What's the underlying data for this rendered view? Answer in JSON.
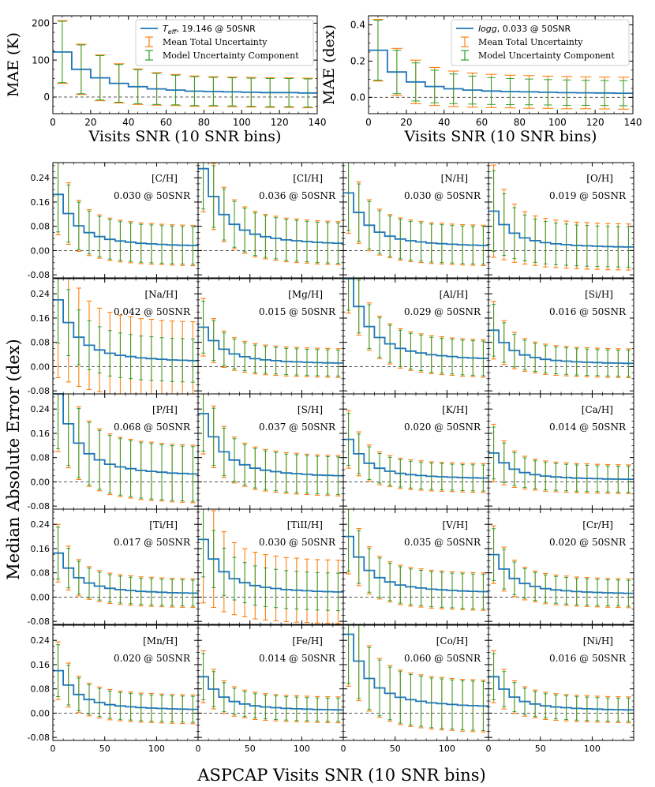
{
  "figure": {
    "shared_ylabel": "Median Absolute Error (dex)",
    "shared_xlabel": "ASPCAP Visits SNR (10 SNR bins)"
  },
  "legend_labels": {
    "total": "Mean Total Uncertainty",
    "model": "Model Uncertainty Component"
  },
  "colors": {
    "line": "#1f77b4",
    "total": "#ff7f0e",
    "model": "#2ca02c",
    "zero": "#444444"
  },
  "chart_data": [
    {
      "id": "teff",
      "type": "line",
      "title": "",
      "xlabel": "Visits SNR (10 SNR bins)",
      "ylabel": "MAE (K)",
      "xlim": [
        0,
        140
      ],
      "ylim": [
        -45,
        220
      ],
      "xticks": [
        0,
        20,
        40,
        60,
        80,
        100,
        120,
        140
      ],
      "yticks": [
        0,
        100,
        200
      ],
      "legend_param": "T",
      "legend_param_sub": "eff",
      "legend_rest": ", 19.146 @ 50SNR",
      "x": [
        0,
        10,
        20,
        30,
        40,
        50,
        60,
        70,
        80,
        90,
        100,
        110,
        120,
        130
      ],
      "bin_width": 10,
      "values": [
        122,
        75,
        52,
        37,
        28,
        22,
        19,
        16,
        15,
        14,
        13,
        12,
        12,
        11
      ],
      "total_err": [
        85,
        68,
        62,
        53,
        48,
        44,
        42,
        41,
        40,
        40,
        40,
        40,
        40,
        40
      ],
      "model_err": [
        83,
        66,
        60,
        51,
        46,
        42,
        40,
        39,
        38,
        38,
        38,
        38,
        38,
        38
      ]
    },
    {
      "id": "logg",
      "type": "line",
      "title": "",
      "xlabel": "Visits SNR (10 SNR bins)",
      "ylabel": "MAE (dex)",
      "xlim": [
        0,
        140
      ],
      "ylim": [
        -0.09,
        0.45
      ],
      "xticks": [
        0,
        20,
        40,
        60,
        80,
        100,
        120,
        140
      ],
      "yticks": [
        0.0,
        0.2,
        0.4
      ],
      "legend_param": "logg",
      "legend_param_sub": "",
      "legend_rest": ", 0.033 @ 50SNR",
      "x": [
        0,
        10,
        20,
        30,
        40,
        50,
        60,
        70,
        80,
        90,
        100,
        110,
        120,
        130
      ],
      "bin_width": 10,
      "values": [
        0.26,
        0.14,
        0.085,
        0.06,
        0.047,
        0.04,
        0.035,
        0.032,
        0.03,
        0.028,
        0.026,
        0.025,
        0.024,
        0.023
      ],
      "total_err": [
        0.17,
        0.13,
        0.12,
        0.105,
        0.098,
        0.094,
        0.092,
        0.09,
        0.09,
        0.089,
        0.089,
        0.088,
        0.088,
        0.088
      ],
      "model_err": [
        0.165,
        0.12,
        0.105,
        0.09,
        0.082,
        0.077,
        0.074,
        0.072,
        0.071,
        0.07,
        0.07,
        0.069,
        0.069,
        0.069
      ]
    },
    {
      "id": "C_H",
      "type": "line",
      "label": "[C/H]",
      "mae_text": "0.030 @ 50SNR",
      "peak": 0.185,
      "tot": 0.07,
      "mod": 0.065
    },
    {
      "id": "CI_H",
      "type": "line",
      "label": "[CI/H]",
      "mae_text": "0.036 @ 50SNR",
      "peak": 0.27,
      "tot": 0.075,
      "mod": 0.07
    },
    {
      "id": "N_H",
      "type": "line",
      "label": "[N/H]",
      "mae_text": "0.030 @ 50SNR",
      "peak": 0.19,
      "tot": 0.07,
      "mod": 0.065
    },
    {
      "id": "O_H",
      "type": "line",
      "label": "[O/H]",
      "mae_text": "0.019 @ 50SNR",
      "peak": 0.13,
      "tot": 0.08,
      "mod": 0.07
    },
    {
      "id": "Na_H",
      "type": "line",
      "label": "[Na/H]",
      "mae_text": "0.042 @ 50SNR",
      "peak": 0.22,
      "tot": 0.135,
      "mod": 0.075
    },
    {
      "id": "Mg_H",
      "type": "line",
      "label": "[Mg/H]",
      "mae_text": "0.015 @ 50SNR",
      "peak": 0.13,
      "tot": 0.05,
      "mod": 0.045
    },
    {
      "id": "Al_H",
      "type": "line",
      "label": "[Al/H]",
      "mae_text": "0.029 @ 50SNR",
      "peak": 0.3,
      "tot": 0.065,
      "mod": 0.06
    },
    {
      "id": "Si_H",
      "type": "line",
      "label": "[Si/H]",
      "mae_text": "0.016 @ 50SNR",
      "peak": 0.12,
      "tot": 0.05,
      "mod": 0.045
    },
    {
      "id": "P_H",
      "type": "line",
      "label": "[P/H]",
      "mae_text": "0.068 @ 50SNR",
      "peak": 0.29,
      "tot": 0.1,
      "mod": 0.095
    },
    {
      "id": "S_H",
      "type": "line",
      "label": "[S/H]",
      "mae_text": "0.037 @ 50SNR",
      "peak": 0.225,
      "tot": 0.07,
      "mod": 0.065
    },
    {
      "id": "K_H",
      "type": "line",
      "label": "[K/H]",
      "mae_text": "0.020 @ 50SNR",
      "peak": 0.14,
      "tot": 0.05,
      "mod": 0.045
    },
    {
      "id": "Ca_H",
      "type": "line",
      "label": "[Ca/H]",
      "mae_text": "0.014 @ 50SNR",
      "peak": 0.095,
      "tot": 0.05,
      "mod": 0.045
    },
    {
      "id": "Ti_H",
      "type": "line",
      "label": "[Ti/H]",
      "mae_text": "0.017 @ 50SNR",
      "peak": 0.145,
      "tot": 0.05,
      "mod": 0.045
    },
    {
      "id": "TiII_H",
      "type": "line",
      "label": "[TiII/H]",
      "mae_text": "0.030 @ 50SNR",
      "peak": 0.19,
      "tot": 0.11,
      "mod": 0.065
    },
    {
      "id": "V_H",
      "type": "line",
      "label": "[V/H]",
      "mae_text": "0.035 @ 50SNR",
      "peak": 0.2,
      "tot": 0.065,
      "mod": 0.06
    },
    {
      "id": "Cr_H",
      "type": "line",
      "label": "[Cr/H]",
      "mae_text": "0.020 @ 50SNR",
      "peak": 0.14,
      "tot": 0.05,
      "mod": 0.045
    },
    {
      "id": "Mn_H",
      "type": "line",
      "label": "[Mn/H]",
      "mae_text": "0.020 @ 50SNR",
      "peak": 0.14,
      "tot": 0.05,
      "mod": 0.045
    },
    {
      "id": "Fe_H",
      "type": "line",
      "label": "[Fe/H]",
      "mae_text": "0.014 @ 50SNR",
      "peak": 0.12,
      "tot": 0.045,
      "mod": 0.04
    },
    {
      "id": "Co_H",
      "type": "line",
      "label": "[Co/H]",
      "mae_text": "0.060 @ 50SNR",
      "peak": 0.26,
      "tot": 0.09,
      "mod": 0.085
    },
    {
      "id": "Ni_H",
      "type": "line",
      "label": "[Ni/H]",
      "mae_text": "0.016 @ 50SNR",
      "peak": 0.12,
      "tot": 0.045,
      "mod": 0.04
    }
  ],
  "abund_axes": {
    "xlim": [
      0,
      140
    ],
    "ylim": [
      -0.09,
      0.29
    ],
    "xticks": [
      0,
      50,
      100
    ],
    "yticks": [
      -0.08,
      0.0,
      0.08,
      0.16,
      0.24
    ],
    "x": [
      0,
      10,
      20,
      30,
      40,
      50,
      60,
      70,
      80,
      90,
      100,
      110,
      120,
      130
    ],
    "bin_width": 10,
    "shape": [
      1.0,
      0.66,
      0.44,
      0.32,
      0.25,
      0.2,
      0.17,
      0.15,
      0.13,
      0.12,
      0.11,
      0.1,
      0.095,
      0.09
    ],
    "err_shape": [
      1.9,
      1.45,
      1.2,
      1.08,
      1.02,
      1.0,
      0.98,
      0.97,
      0.96,
      0.96,
      0.95,
      0.95,
      0.95,
      0.95
    ]
  }
}
